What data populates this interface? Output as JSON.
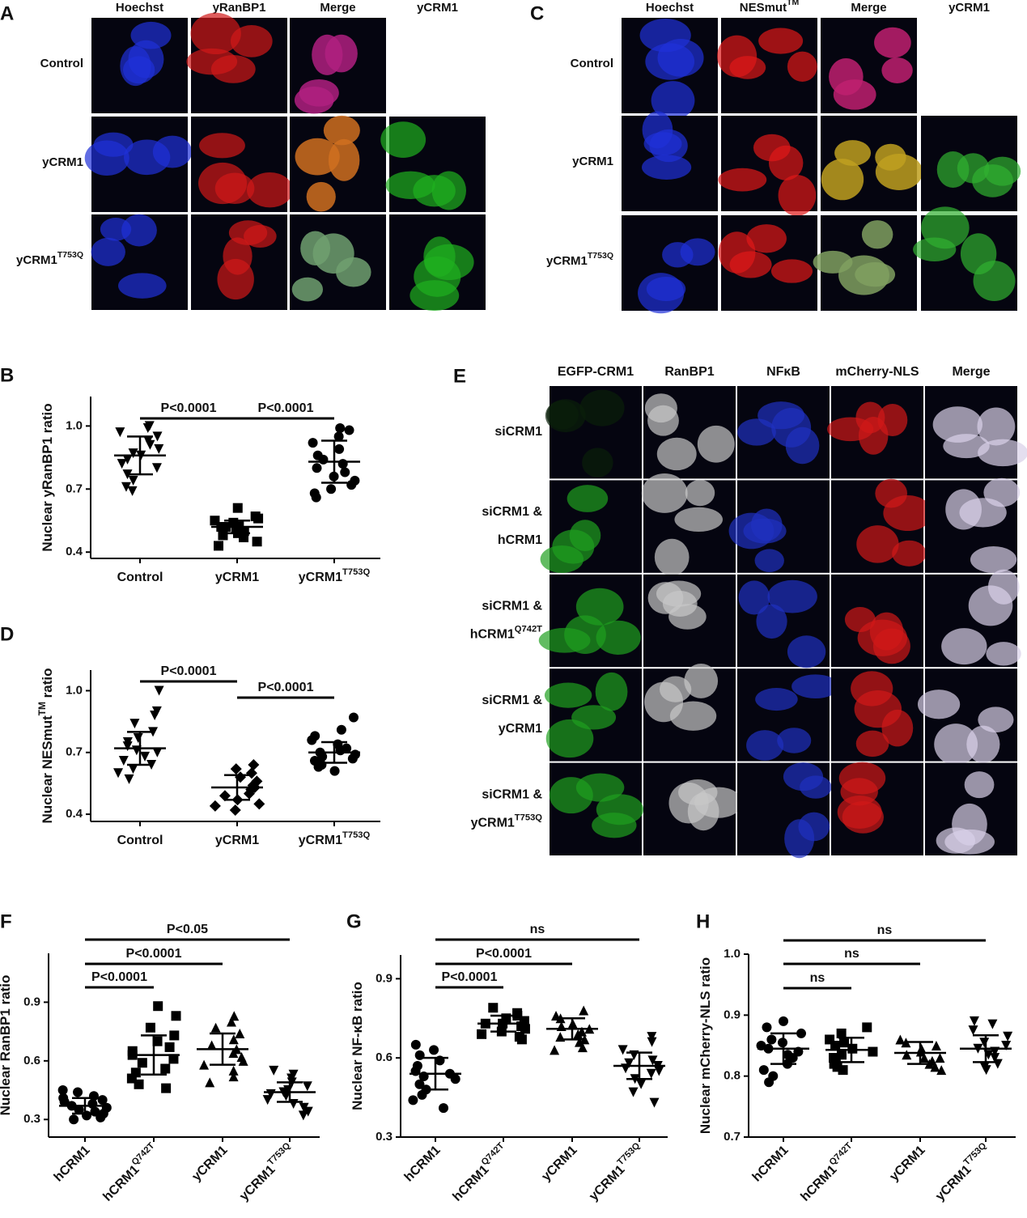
{
  "panel_A": {
    "letter": "A",
    "columns": [
      "Hoechst",
      "yRanBP1",
      "Merge",
      "yCRM1"
    ],
    "rows": [
      {
        "text": "Control"
      },
      {
        "text": "yCRM1"
      },
      {
        "text": "yCRM1",
        "sup": "T753Q"
      }
    ]
  },
  "panel_C": {
    "letter": "C",
    "columns": [
      {
        "text": "Hoechst"
      },
      {
        "text": "NESmut",
        "sup": "TM"
      },
      {
        "text": "Merge"
      },
      {
        "text": "yCRM1"
      }
    ],
    "rows": [
      {
        "text": "Control"
      },
      {
        "text": "yCRM1"
      },
      {
        "text": "yCRM1",
        "sup": "T753Q"
      }
    ]
  },
  "panel_E": {
    "letter": "E",
    "columns": [
      "EGFP-CRM1",
      "RanBP1",
      "NFκB",
      "mCherry-NLS",
      "Merge"
    ],
    "rows": [
      {
        "lines": [
          {
            "text": "siCRM1"
          }
        ]
      },
      {
        "lines": [
          {
            "text": "siCRM1 &"
          },
          {
            "text": "hCRM1"
          }
        ]
      },
      {
        "lines": [
          {
            "text": "siCRM1 &"
          },
          {
            "text": "hCRM1",
            "sup": "Q742T"
          }
        ]
      },
      {
        "lines": [
          {
            "text": "siCRM1 &"
          },
          {
            "text": "yCRM1"
          }
        ]
      },
      {
        "lines": [
          {
            "text": "siCRM1 &"
          },
          {
            "text": "yCRM1",
            "sup": "T753Q"
          }
        ]
      }
    ]
  },
  "chart_data": [
    {
      "type": "scatter",
      "panel": "B",
      "ylabel": "Nuclear yRanBP1 ratio",
      "categories": [
        "Control",
        "yCRM1",
        "yCRM1"
      ],
      "category_superscripts": [
        null,
        null,
        "T753Q"
      ],
      "markers": [
        "triangle-down",
        "square",
        "circle"
      ],
      "color": "#000000",
      "values": [
        [
          1.0,
          0.99,
          0.97,
          0.95,
          0.93,
          0.91,
          0.89,
          0.87,
          0.86,
          0.84,
          0.82,
          0.8,
          0.77,
          0.74,
          0.71,
          0.69
        ],
        [
          0.61,
          0.57,
          0.56,
          0.55,
          0.54,
          0.53,
          0.52,
          0.52,
          0.51,
          0.5,
          0.49,
          0.48,
          0.47,
          0.45,
          0.43
        ],
        [
          0.99,
          0.98,
          0.95,
          0.92,
          0.89,
          0.86,
          0.84,
          0.82,
          0.8,
          0.78,
          0.76,
          0.74,
          0.72,
          0.7,
          0.68,
          0.66
        ]
      ],
      "means": [
        0.86,
        0.52,
        0.83
      ],
      "sds": [
        0.09,
        0.03,
        0.1
      ],
      "comparisons": [
        {
          "groups": [
            0,
            1
          ],
          "label": "P<0.0001"
        },
        {
          "groups": [
            1,
            2
          ],
          "label": "P<0.0001"
        }
      ],
      "ylim": [
        0.37,
        1.14
      ],
      "yticks": [
        0.4,
        0.7,
        {
          "value": 1.0,
          "label": "1.0"
        }
      ]
    },
    {
      "type": "scatter",
      "panel": "D",
      "ylabel": "Nuclear NESmut",
      "ylabel_sup": "TM",
      "ylabel_end": " ratio",
      "categories": [
        "Control",
        "yCRM1",
        "yCRM1"
      ],
      "category_superscripts": [
        null,
        null,
        "T753Q"
      ],
      "markers": [
        "triangle-down",
        "diamond",
        "circle"
      ],
      "color": "#000000",
      "values": [
        [
          1.0,
          0.9,
          0.88,
          0.84,
          0.8,
          0.77,
          0.75,
          0.73,
          0.71,
          0.7,
          0.68,
          0.66,
          0.64,
          0.62,
          0.6,
          0.57
        ],
        [
          0.64,
          0.62,
          0.6,
          0.58,
          0.56,
          0.54,
          0.53,
          0.52,
          0.5,
          0.49,
          0.47,
          0.45,
          0.44,
          0.42
        ],
        [
          0.87,
          0.81,
          0.78,
          0.76,
          0.74,
          0.72,
          0.71,
          0.7,
          0.69,
          0.68,
          0.67,
          0.66,
          0.64,
          0.63,
          0.61
        ]
      ],
      "means": [
        0.72,
        0.53,
        0.7
      ],
      "sds": [
        0.08,
        0.06,
        0.05
      ],
      "comparisons": [
        {
          "groups": [
            0,
            1
          ],
          "label": "P<0.0001"
        },
        {
          "groups": [
            1,
            2
          ],
          "label": "P<0.0001"
        }
      ],
      "ylim": [
        0.365,
        1.1
      ],
      "yticks": [
        0.4,
        0.7,
        {
          "value": 1.0,
          "label": "1.0"
        }
      ]
    },
    {
      "type": "scatter",
      "panel": "F",
      "ylabel": "Nuclear RanBP1 ratio",
      "categories": [
        "hCRM1",
        "hCRM1",
        "yCRM1",
        "yCRM1"
      ],
      "category_superscripts": [
        null,
        "Q742T",
        null,
        "T753Q"
      ],
      "markers": [
        "circle",
        "square",
        "triangle-up",
        "triangle-down"
      ],
      "color": "#000000",
      "values": [
        [
          0.45,
          0.44,
          0.42,
          0.41,
          0.4,
          0.39,
          0.38,
          0.37,
          0.36,
          0.35,
          0.34,
          0.33,
          0.32,
          0.31,
          0.3
        ],
        [
          0.88,
          0.83,
          0.77,
          0.73,
          0.7,
          0.67,
          0.65,
          0.63,
          0.61,
          0.59,
          0.56,
          0.54,
          0.51,
          0.48,
          0.46
        ],
        [
          0.83,
          0.8,
          0.77,
          0.74,
          0.71,
          0.68,
          0.66,
          0.64,
          0.62,
          0.6,
          0.58,
          0.55,
          0.52,
          0.49
        ],
        [
          0.55,
          0.53,
          0.51,
          0.49,
          0.47,
          0.45,
          0.44,
          0.43,
          0.42,
          0.4,
          0.38,
          0.36,
          0.34,
          0.32
        ]
      ],
      "means": [
        0.37,
        0.63,
        0.66,
        0.44
      ],
      "sds": [
        0.04,
        0.1,
        0.08,
        0.05
      ],
      "comparisons": [
        {
          "groups": [
            0,
            1
          ],
          "label": "P<0.0001"
        },
        {
          "groups": [
            0,
            2
          ],
          "label": "P<0.0001"
        },
        {
          "groups": [
            0,
            3
          ],
          "label": "P<0.05"
        }
      ],
      "ylim": [
        0.21,
        1.15
      ],
      "yticks": [
        0.3,
        0.6,
        0.9
      ]
    },
    {
      "type": "scatter",
      "panel": "G",
      "ylabel": "Nuclear NF-κB ratio",
      "categories": [
        "hCRM1",
        "hCRM1",
        "yCRM1",
        "yCRM1"
      ],
      "category_superscripts": [
        null,
        "Q742T",
        null,
        "T753Q"
      ],
      "markers": [
        "circle",
        "square",
        "triangle-up",
        "triangle-down"
      ],
      "color": "#000000",
      "values": [
        [
          0.65,
          0.63,
          0.61,
          0.59,
          0.57,
          0.55,
          0.54,
          0.53,
          0.52,
          0.5,
          0.48,
          0.46,
          0.44,
          0.41
        ],
        [
          0.79,
          0.77,
          0.76,
          0.75,
          0.74,
          0.73,
          0.73,
          0.72,
          0.71,
          0.7,
          0.69,
          0.68,
          0.67
        ],
        [
          0.78,
          0.76,
          0.75,
          0.73,
          0.72,
          0.71,
          0.7,
          0.69,
          0.68,
          0.67,
          0.66,
          0.64,
          0.63
        ],
        [
          0.68,
          0.66,
          0.63,
          0.61,
          0.59,
          0.58,
          0.57,
          0.56,
          0.55,
          0.54,
          0.52,
          0.5,
          0.47,
          0.43
        ]
      ],
      "means": [
        0.54,
        0.73,
        0.71,
        0.57
      ],
      "sds": [
        0.06,
        0.03,
        0.04,
        0.05
      ],
      "comparisons": [
        {
          "groups": [
            0,
            1
          ],
          "label": "P<0.0001"
        },
        {
          "groups": [
            0,
            2
          ],
          "label": "P<0.0001"
        },
        {
          "groups": [
            0,
            3
          ],
          "label": "ns"
        }
      ],
      "ylim": [
        0.3,
        0.99
      ],
      "yticks": [
        0.3,
        0.6,
        0.9
      ]
    },
    {
      "type": "scatter",
      "panel": "H",
      "ylabel": "Nuclear mCherry-NLS ratio",
      "categories": [
        "hCRM1",
        "hCRM1",
        "yCRM1",
        "yCRM1"
      ],
      "category_superscripts": [
        null,
        "Q742T",
        null,
        "T753Q"
      ],
      "markers": [
        "circle",
        "square",
        "triangle-up",
        "triangle-down"
      ],
      "color": "#000000",
      "values": [
        [
          0.89,
          0.88,
          0.87,
          0.86,
          0.855,
          0.85,
          0.845,
          0.84,
          0.835,
          0.83,
          0.82,
          0.81,
          0.8,
          0.79
        ],
        [
          0.88,
          0.87,
          0.86,
          0.855,
          0.85,
          0.845,
          0.84,
          0.835,
          0.83,
          0.825,
          0.82,
          0.815,
          0.81
        ],
        [
          0.86,
          0.855,
          0.85,
          0.845,
          0.84,
          0.835,
          0.83,
          0.83,
          0.825,
          0.82,
          0.815,
          0.81
        ],
        [
          0.89,
          0.885,
          0.875,
          0.865,
          0.855,
          0.85,
          0.845,
          0.84,
          0.835,
          0.83,
          0.82,
          0.815,
          0.81
        ]
      ],
      "means": [
        0.845,
        0.843,
        0.838,
        0.845
      ],
      "sds": [
        0.025,
        0.02,
        0.018,
        0.022
      ],
      "comparisons": [
        {
          "groups": [
            0,
            1
          ],
          "label": "ns"
        },
        {
          "groups": [
            0,
            2
          ],
          "label": "ns"
        },
        {
          "groups": [
            0,
            3
          ],
          "label": "ns"
        }
      ],
      "ylim": [
        0.7,
        1.0
      ],
      "yticks": [
        0.7,
        0.8,
        0.9,
        {
          "value": 1.0,
          "label": "1.0"
        }
      ]
    }
  ]
}
